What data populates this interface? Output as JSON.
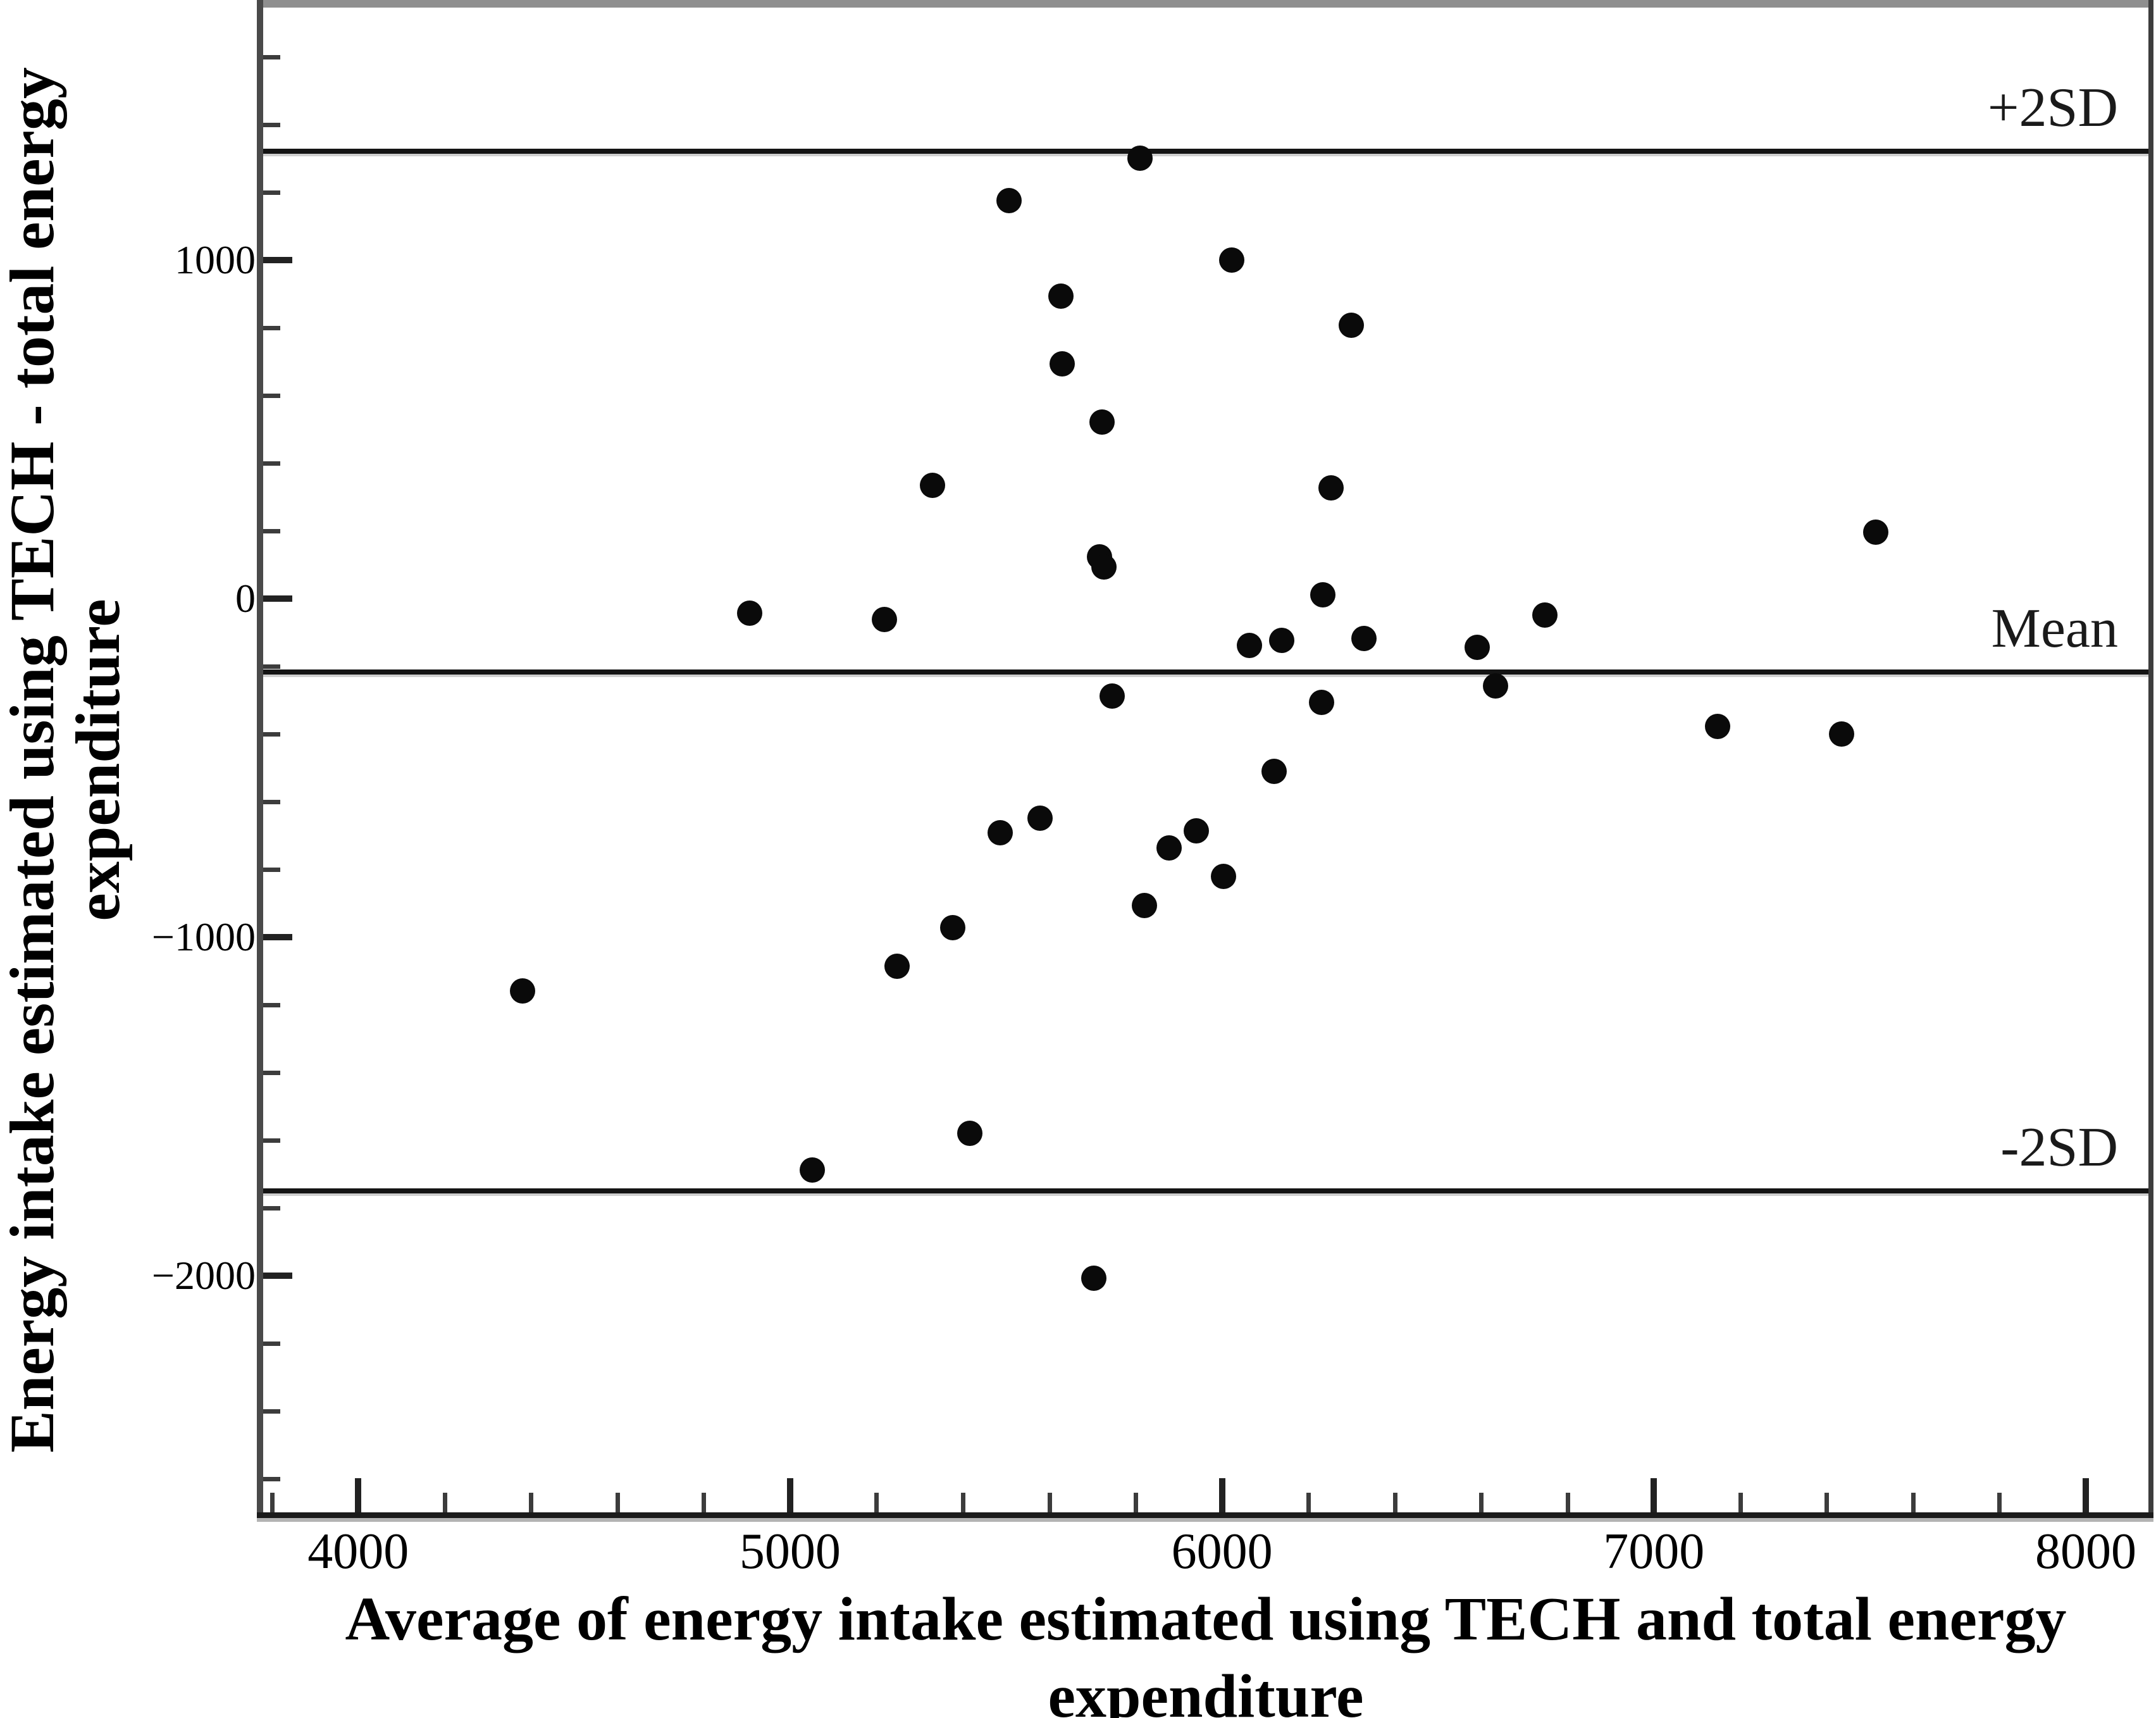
{
  "figure": {
    "background": "#ffffff",
    "dot_color": "#0a0a0a",
    "line_color": "#141414",
    "border_color": "#3d3d3d",
    "top_border_color": "#8f8f8f"
  },
  "chart_data": {
    "type": "scatter",
    "title": "",
    "xlabel": "Average of energy intake estimated using TECH and total energy expenditure",
    "xlabel_lines": [
      "Average of energy intake estimated using TECH and total energy",
      "expenditure"
    ],
    "ylabel": "Energy intake estimated using TECH - total energy expenditure",
    "ylabel_lines": [
      "Energy intake estimated using TECH - total energy",
      "expenditure"
    ],
    "xlim": [
      3780,
      8145
    ],
    "ylim": [
      -2700,
      1745
    ],
    "grid": false,
    "x_axis": {
      "tick_min": 3800,
      "tick_max": 8000,
      "tick_step": 200,
      "major_ticks": [
        4000,
        5000,
        6000,
        7000,
        8000
      ],
      "major_labels": [
        "4000",
        "5000",
        "6000",
        "7000",
        "8000"
      ]
    },
    "y_axis": {
      "tick_min": -2600,
      "tick_max": 1600,
      "tick_step": 200,
      "major_ticks": [
        1000,
        0,
        -1000,
        -2000
      ],
      "major_labels": [
        "1000",
        "0",
        "−1000",
        "−2000"
      ]
    },
    "reference_lines": [
      {
        "label": "+2SD",
        "value": 1320
      },
      {
        "label": "Mean",
        "value": -217
      },
      {
        "label": "-2SD",
        "value": -1750
      }
    ],
    "points": [
      [
        4381,
        -1159
      ],
      [
        4906,
        -43
      ],
      [
        5051,
        -1688
      ],
      [
        5218,
        -62
      ],
      [
        5247,
        -1086
      ],
      [
        5329,
        333
      ],
      [
        5376,
        -972
      ],
      [
        5416,
        -1581
      ],
      [
        5486,
        -692
      ],
      [
        5507,
        1174
      ],
      [
        5578,
        -650
      ],
      [
        5627,
        893
      ],
      [
        5630,
        692
      ],
      [
        5703,
        -2009
      ],
      [
        5716,
        123
      ],
      [
        5726,
        93
      ],
      [
        5723,
        521
      ],
      [
        5745,
        -288
      ],
      [
        5810,
        1301
      ],
      [
        5820,
        -907
      ],
      [
        5877,
        -738
      ],
      [
        5940,
        -686
      ],
      [
        6003,
        -822
      ],
      [
        6022,
        1000
      ],
      [
        6063,
        -140
      ],
      [
        6121,
        -512
      ],
      [
        6138,
        -125
      ],
      [
        6231,
        -307
      ],
      [
        6234,
        11
      ],
      [
        6252,
        327
      ],
      [
        6299,
        806
      ],
      [
        6328,
        -118
      ],
      [
        6591,
        -144
      ],
      [
        6634,
        -258
      ],
      [
        6747,
        -50
      ],
      [
        7148,
        -378
      ],
      [
        7435,
        -400
      ],
      [
        7514,
        196
      ]
    ]
  }
}
